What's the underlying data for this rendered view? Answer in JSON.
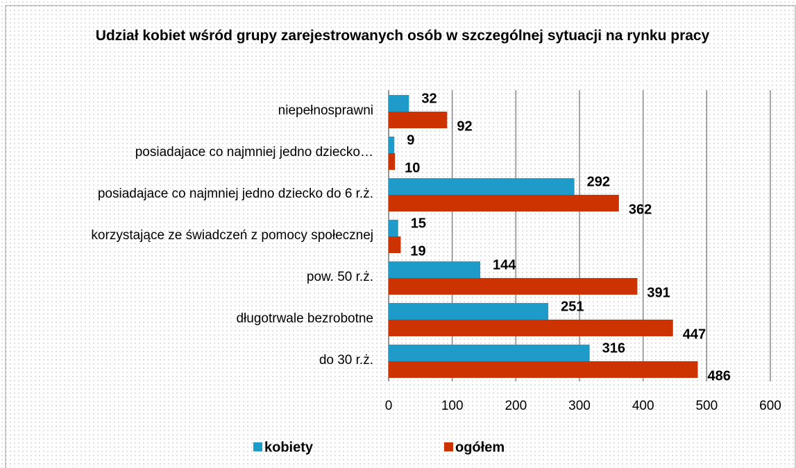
{
  "chart_data": {
    "type": "barh",
    "title": "Udział kobiet wśród grupy zarejestrowanych osób w szczególnej sytuacji na rynku pracy",
    "categories": [
      "niepełnosprawni",
      "posiadajace co najmniej jedno dziecko…",
      "posiadajace co najmniej jedno dziecko do 6 r.ż.",
      "korzystające ze świadczeń z pomocy społecznej",
      "pow. 50 r.ż.",
      "długotrwale bezrobotne",
      "do 30 r.ż."
    ],
    "series": [
      {
        "name": "kobiety",
        "color": "#1f9bc9",
        "values": [
          32,
          9,
          292,
          15,
          144,
          251,
          316
        ]
      },
      {
        "name": "ogółem",
        "color": "#cc3300",
        "values": [
          92,
          10,
          362,
          19,
          391,
          447,
          486
        ]
      }
    ],
    "xlim": [
      0,
      600
    ],
    "xticks": [
      0,
      100,
      200,
      300,
      400,
      500,
      600
    ],
    "grid": true,
    "legend": "bottom"
  }
}
